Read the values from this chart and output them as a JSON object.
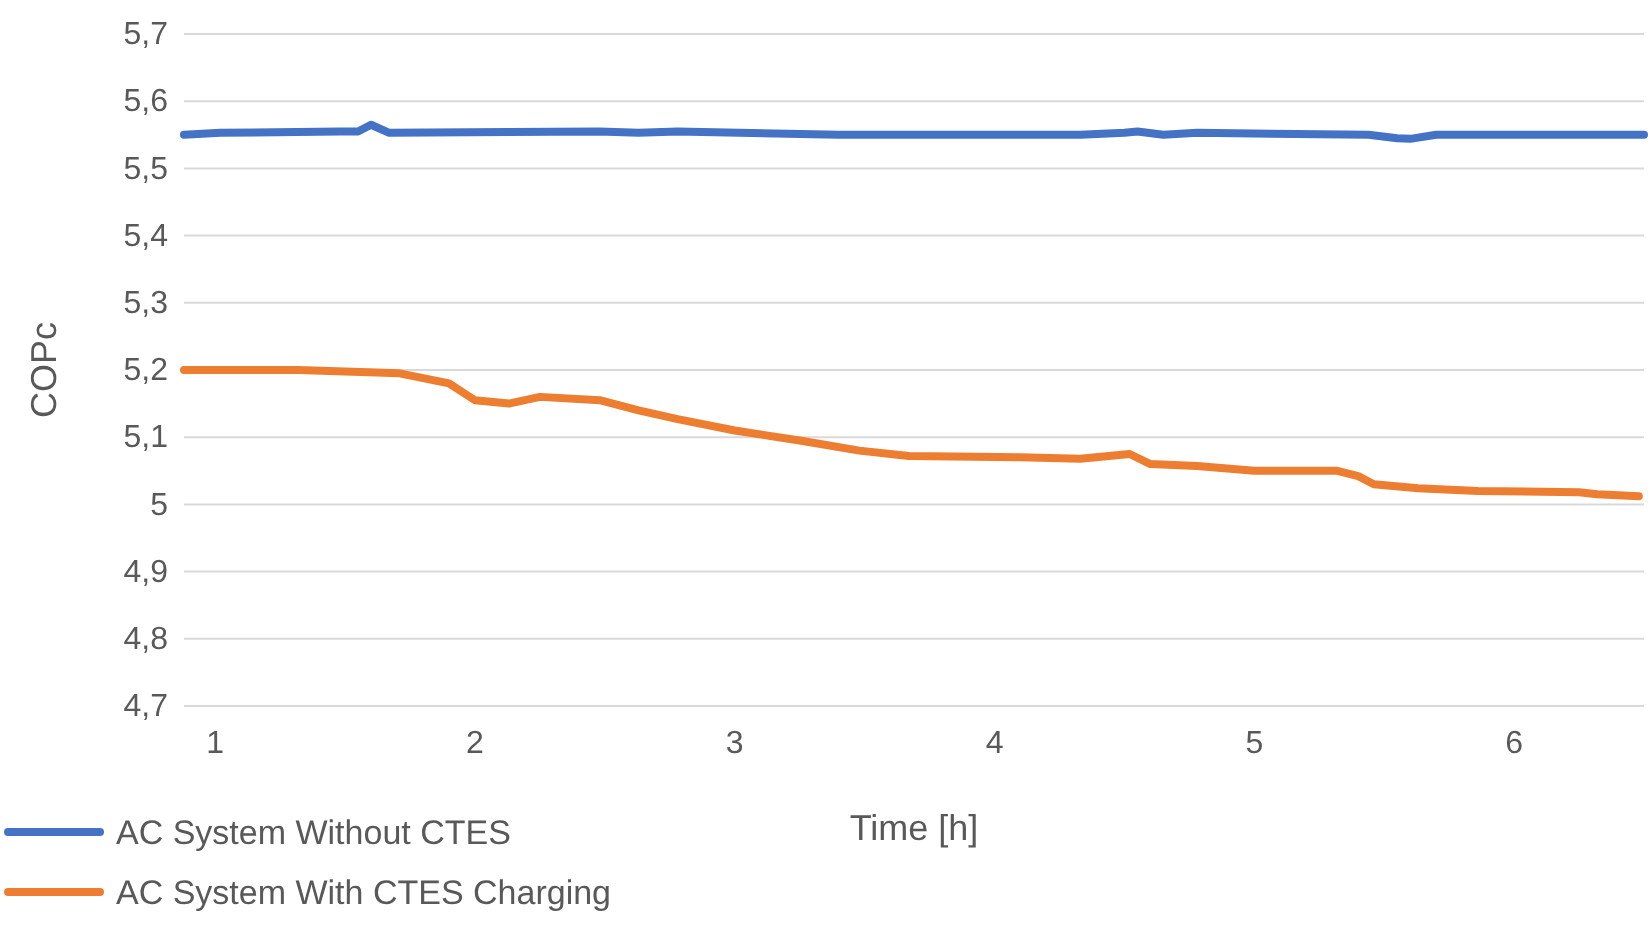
{
  "chart_data": {
    "type": "line",
    "xlabel": "Time [h]",
    "ylabel": "COPc",
    "xlim": [
      0.88,
      6.5
    ],
    "xticks": [
      1,
      2,
      3,
      4,
      5,
      6
    ],
    "ylim": [
      4.7,
      5.7
    ],
    "yticks": [
      {
        "value": 4.7,
        "label": "4,7"
      },
      {
        "value": 4.8,
        "label": "4,8"
      },
      {
        "value": 4.9,
        "label": "4,9"
      },
      5,
      {
        "value": 5.1,
        "label": "5,1"
      },
      {
        "value": 5.2,
        "label": "5,2"
      },
      {
        "value": 5.3,
        "label": "5,3"
      },
      {
        "value": 5.4,
        "label": "5,4"
      },
      {
        "value": 5.5,
        "label": "5,5"
      },
      {
        "value": 5.6,
        "label": "5,6"
      },
      {
        "value": 5.7,
        "label": "5,7"
      }
    ],
    "grid": "y",
    "legend": "bottom",
    "marker": "none",
    "line_style": "solid",
    "series": [
      {
        "name": "AC System Without CTES",
        "color": "#4472c4",
        "x": [
          0.88,
          1.02,
          1.48,
          1.55,
          1.6,
          1.67,
          2.48,
          2.63,
          2.78,
          3.4,
          4.33,
          4.5,
          4.55,
          4.65,
          4.78,
          5.44,
          5.55,
          5.6,
          5.7,
          6.5
        ],
        "values": [
          5.55,
          5.553,
          5.555,
          5.555,
          5.565,
          5.553,
          5.555,
          5.553,
          5.555,
          5.55,
          5.55,
          5.553,
          5.555,
          5.55,
          5.553,
          5.55,
          5.545,
          5.544,
          5.55,
          5.55
        ]
      },
      {
        "name": "AC System With CTES Charging",
        "color": "#ed7d31",
        "x": [
          0.88,
          1.32,
          1.71,
          1.9,
          2.0,
          2.13,
          2.25,
          2.48,
          2.63,
          2.78,
          3.0,
          3.25,
          3.48,
          3.67,
          4.1,
          4.33,
          4.52,
          4.6,
          4.78,
          5.0,
          5.32,
          5.4,
          5.46,
          5.63,
          5.86,
          6.25,
          6.32,
          6.48
        ],
        "values": [
          5.2,
          5.2,
          5.195,
          5.18,
          5.155,
          5.15,
          5.16,
          5.155,
          5.14,
          5.127,
          5.11,
          5.095,
          5.08,
          5.072,
          5.07,
          5.068,
          5.075,
          5.06,
          5.057,
          5.05,
          5.05,
          5.042,
          5.03,
          5.024,
          5.02,
          5.018,
          5.015,
          5.012
        ]
      }
    ]
  }
}
